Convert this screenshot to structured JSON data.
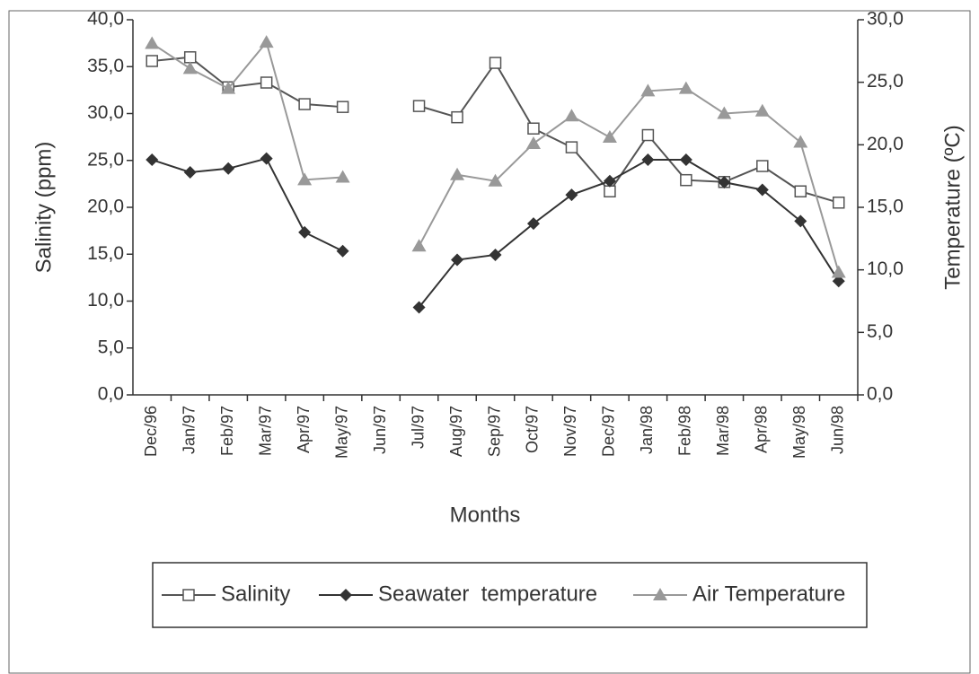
{
  "chart_data": {
    "type": "line",
    "xlabel": "Months",
    "ylabel": "Salinity (ppm)",
    "y2label": "Temperature (ºC)",
    "categories": [
      "Dec/96",
      "Jan/97",
      "Feb/97",
      "Mar/97",
      "Apr/97",
      "May/97",
      "Jun/97",
      "Jul/97",
      "Aug/97",
      "Sep/97",
      "Oct/97",
      "Nov/97",
      "Dec/97",
      "Jan/98",
      "Feb/98",
      "Mar/98",
      "Apr/98",
      "May/98",
      "Jun/98"
    ],
    "ylim": [
      0,
      40
    ],
    "yticks": [
      {
        "value": 0,
        "label": "0,0"
      },
      {
        "value": 5,
        "label": "5,0"
      },
      {
        "value": 10,
        "label": "10,0"
      },
      {
        "value": 15,
        "label": "15,0"
      },
      {
        "value": 20,
        "label": "20,0"
      },
      {
        "value": 25,
        "label": "25,0"
      },
      {
        "value": 30,
        "label": "30,0"
      },
      {
        "value": 35,
        "label": "35,0"
      },
      {
        "value": 40,
        "label": "40,0"
      }
    ],
    "y2lim": [
      0,
      30
    ],
    "y2ticks": [
      {
        "value": 0,
        "label": "0,0"
      },
      {
        "value": 5,
        "label": "5,0"
      },
      {
        "value": 10,
        "label": "10,0"
      },
      {
        "value": 15,
        "label": "15,0"
      },
      {
        "value": 20,
        "label": "20,0"
      },
      {
        "value": 25,
        "label": "25,0"
      },
      {
        "value": 30,
        "label": "30,0"
      }
    ],
    "series": [
      {
        "name": "Salinity",
        "color": "#555555",
        "marker": "square",
        "values": [
          35.6,
          36.0,
          32.8,
          33.3,
          31.0,
          30.7,
          null,
          30.8,
          29.6,
          35.4,
          28.4,
          26.4,
          21.7,
          27.7,
          22.9,
          22.7,
          24.4,
          21.7,
          20.5
        ]
      },
      {
        "name": "Seawater  temperature",
        "color": "#333333",
        "marker": "diamond",
        "axis": "y2",
        "values": [
          18.8,
          17.8,
          18.1,
          18.9,
          13.0,
          11.5,
          null,
          7.0,
          10.8,
          11.2,
          13.7,
          16.0,
          17.1,
          18.8,
          18.8,
          17.0,
          16.4,
          13.9,
          9.1
        ]
      },
      {
        "name": "Air Temperature",
        "color": "#999999",
        "marker": "triangle",
        "axis": "y2",
        "values": [
          28.1,
          26.1,
          24.5,
          28.2,
          17.2,
          17.4,
          null,
          11.9,
          17.6,
          17.1,
          20.1,
          22.3,
          20.6,
          24.3,
          24.5,
          22.5,
          22.7,
          20.2,
          9.8
        ]
      }
    ]
  }
}
